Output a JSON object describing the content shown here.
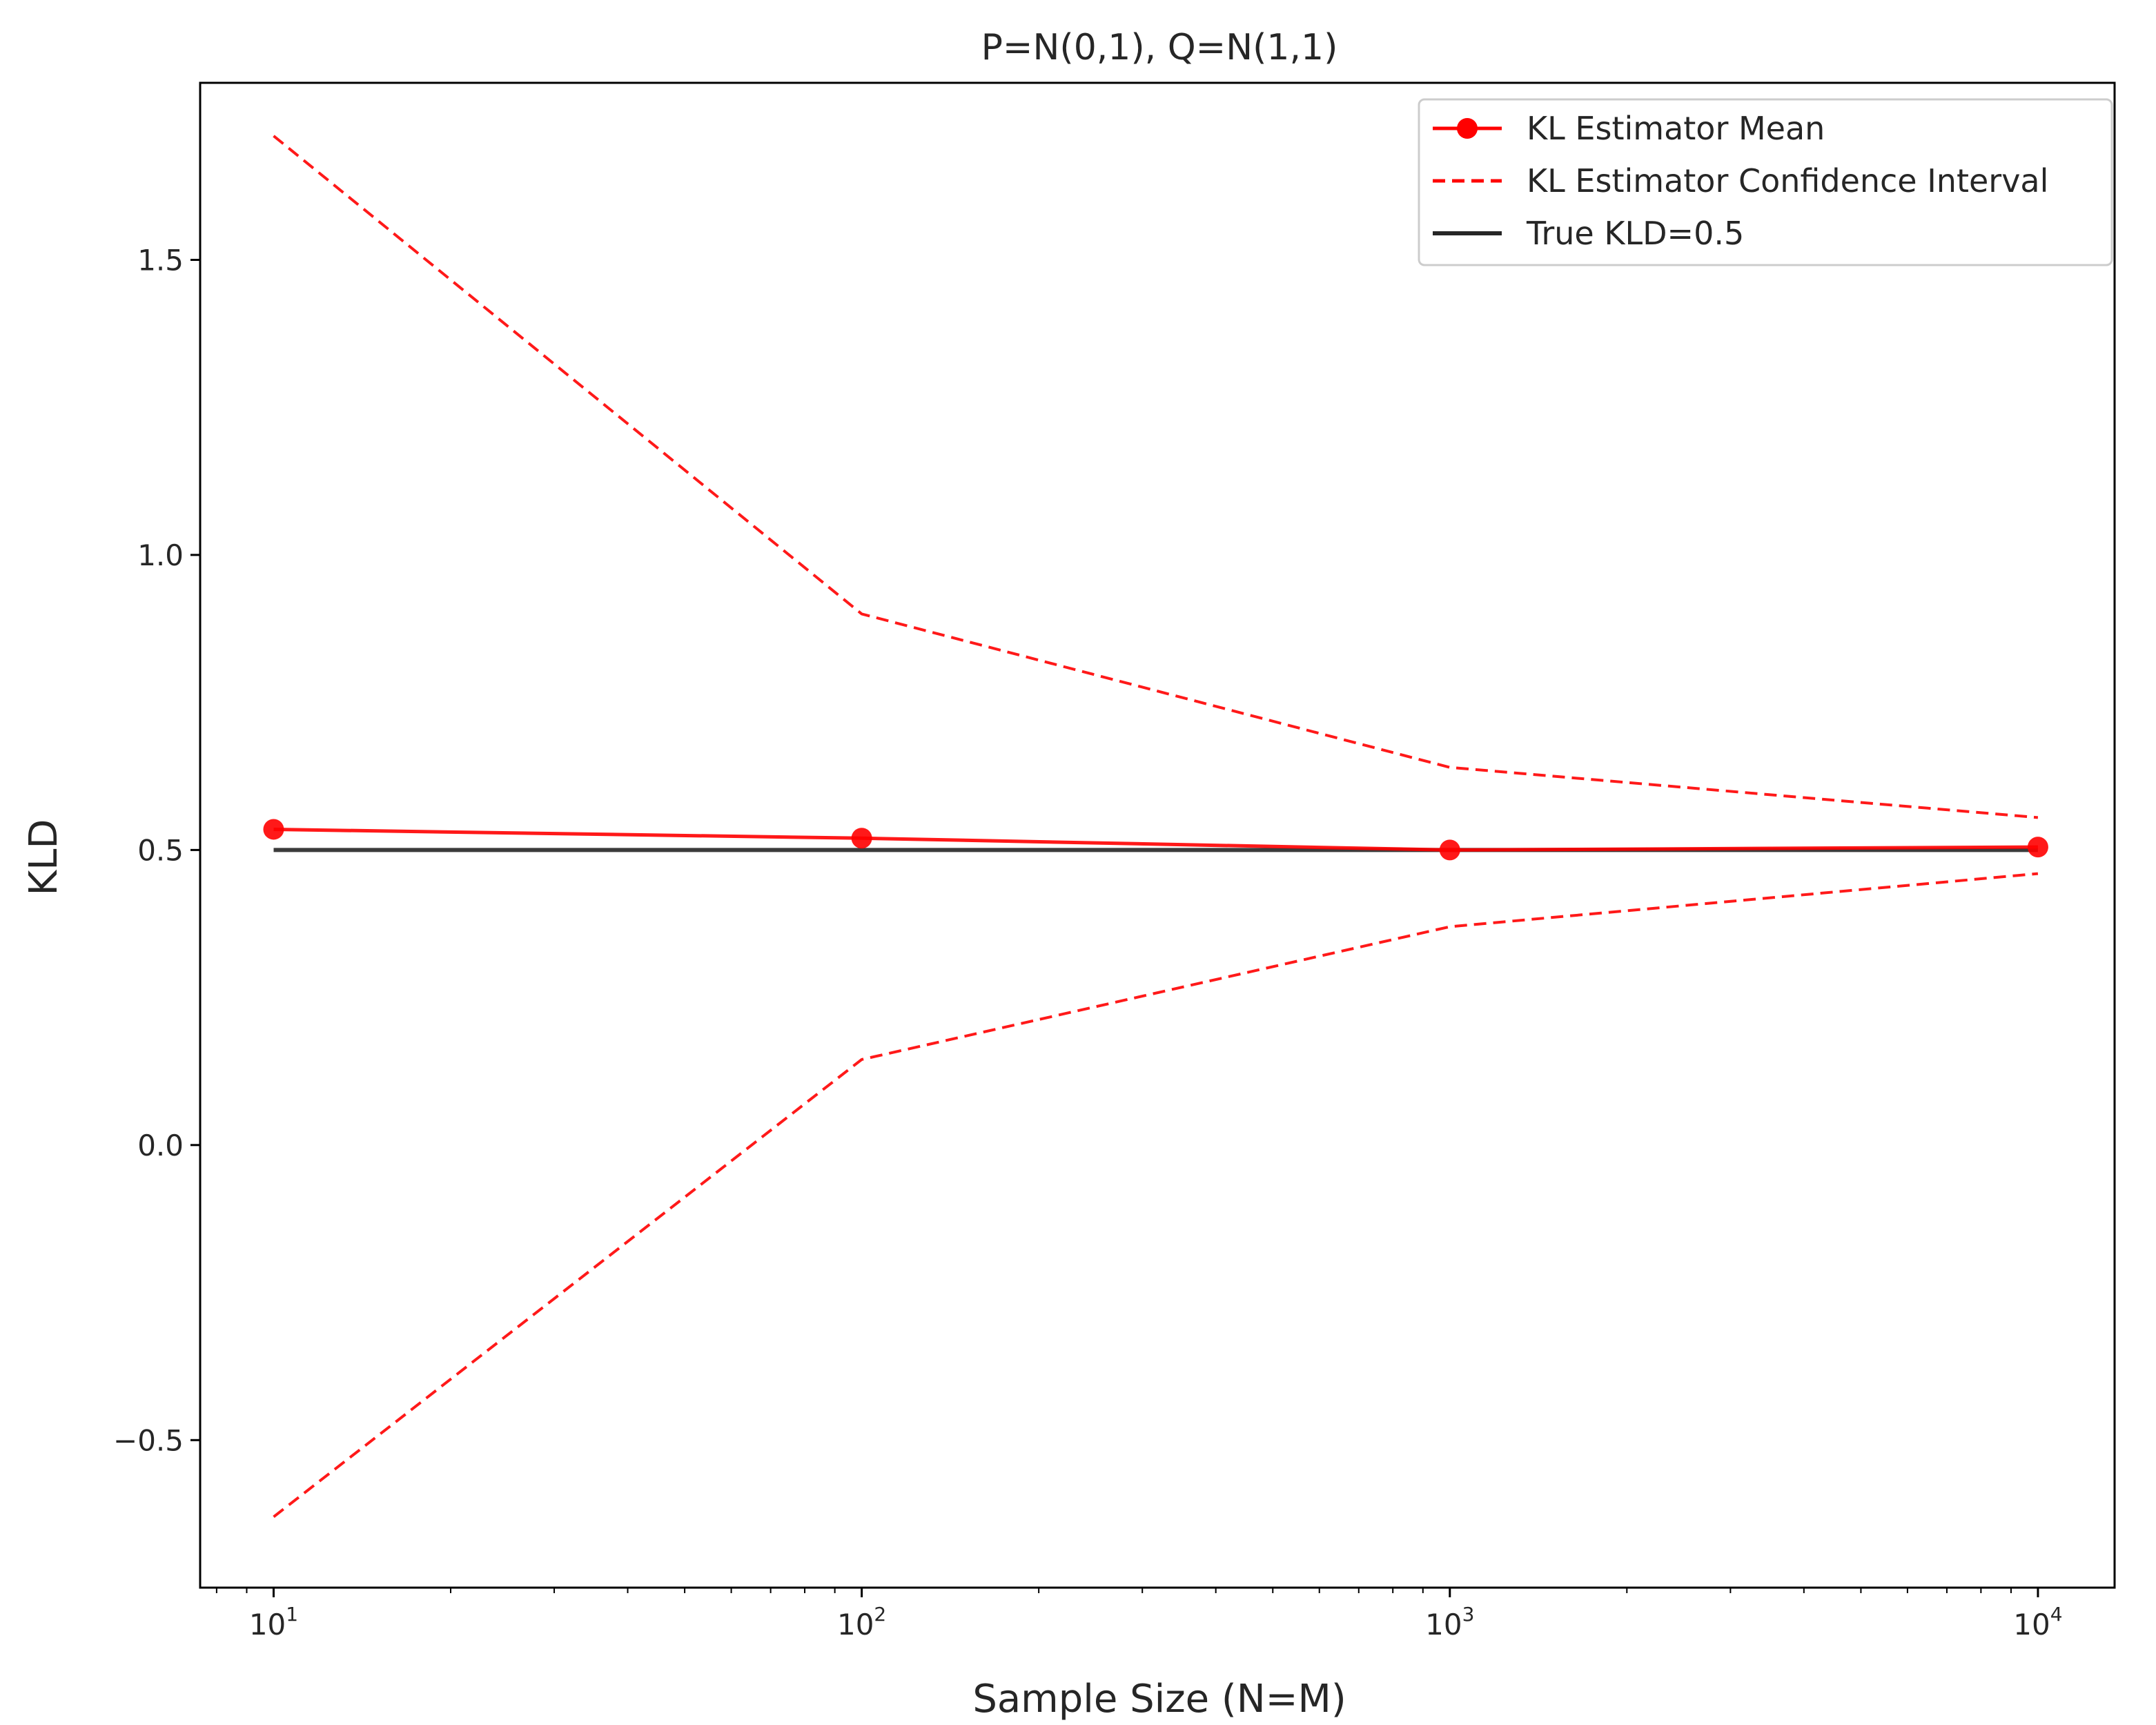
{
  "chart_data": {
    "type": "line",
    "title": "P=N(0,1), Q=N(1,1)",
    "xlabel": "Sample Size (N=M)",
    "ylabel": "KLD",
    "xscale": "log",
    "xlim": [
      7.5,
      13500
    ],
    "ylim": [
      -0.75,
      1.8
    ],
    "x": [
      10,
      100,
      1000,
      10000
    ],
    "x_ticks": [
      {
        "value": 10,
        "base": "10",
        "exp": "1"
      },
      {
        "value": 100,
        "base": "10",
        "exp": "2"
      },
      {
        "value": 1000,
        "base": "10",
        "exp": "3"
      },
      {
        "value": 10000,
        "base": "10",
        "exp": "4"
      }
    ],
    "y_ticks": [
      {
        "value": -0.5,
        "label": "−0.5"
      },
      {
        "value": 0.0,
        "label": "0.0"
      },
      {
        "value": 0.5,
        "label": "0.5"
      },
      {
        "value": 1.0,
        "label": "1.0"
      },
      {
        "value": 1.5,
        "label": "1.5"
      }
    ],
    "series": [
      {
        "name": "KL Estimator Mean",
        "style": "solid-markers",
        "color": "#ff0000",
        "values": [
          0.535,
          0.52,
          0.5,
          0.505
        ]
      },
      {
        "name": "KL Estimator Confidence Interval",
        "style": "dashed",
        "color": "#ff0000",
        "values": [
          1.71,
          0.9,
          0.64,
          0.555
        ]
      },
      {
        "style": "dashed",
        "color": "#ff0000",
        "values": [
          -0.63,
          0.145,
          0.37,
          0.46
        ]
      },
      {
        "name": "True KLD=0.5",
        "style": "solid",
        "color": "#262626",
        "values": [
          0.5,
          0.5,
          0.5,
          0.5
        ]
      }
    ],
    "grid": false,
    "legend_position": "top-right"
  }
}
